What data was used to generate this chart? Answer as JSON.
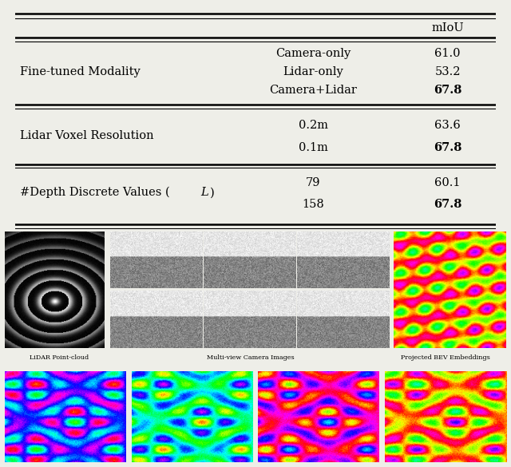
{
  "table_header": "mIoU",
  "rows": [
    {
      "group_label": "Fine-tuned Modality",
      "entries": [
        {
          "sub": "Camera-only",
          "value": "61.0",
          "bold": false
        },
        {
          "sub": "Lidar-only",
          "value": "53.2",
          "bold": false
        },
        {
          "sub": "Camera+Lidar",
          "value": "67.8",
          "bold": true
        }
      ]
    },
    {
      "group_label": "Lidar Voxel Resolution",
      "entries": [
        {
          "sub": "0.2m",
          "value": "63.6",
          "bold": false
        },
        {
          "sub": "0.1m",
          "value": "67.8",
          "bold": true
        }
      ]
    },
    {
      "group_label": "#Depth Discrete Values (",
      "group_label_italic": "L",
      "group_label_suffix": ")",
      "entries": [
        {
          "sub": "79",
          "value": "60.1",
          "bold": false
        },
        {
          "sub": "158",
          "value": "67.8",
          "bold": true
        }
      ]
    }
  ],
  "caption_lidar": "LiDAR Point-cloud",
  "caption_camera": "Multi-view Camera Images",
  "caption_bev": "Projected BEV Embeddings",
  "bg_color": "#eeeee8"
}
